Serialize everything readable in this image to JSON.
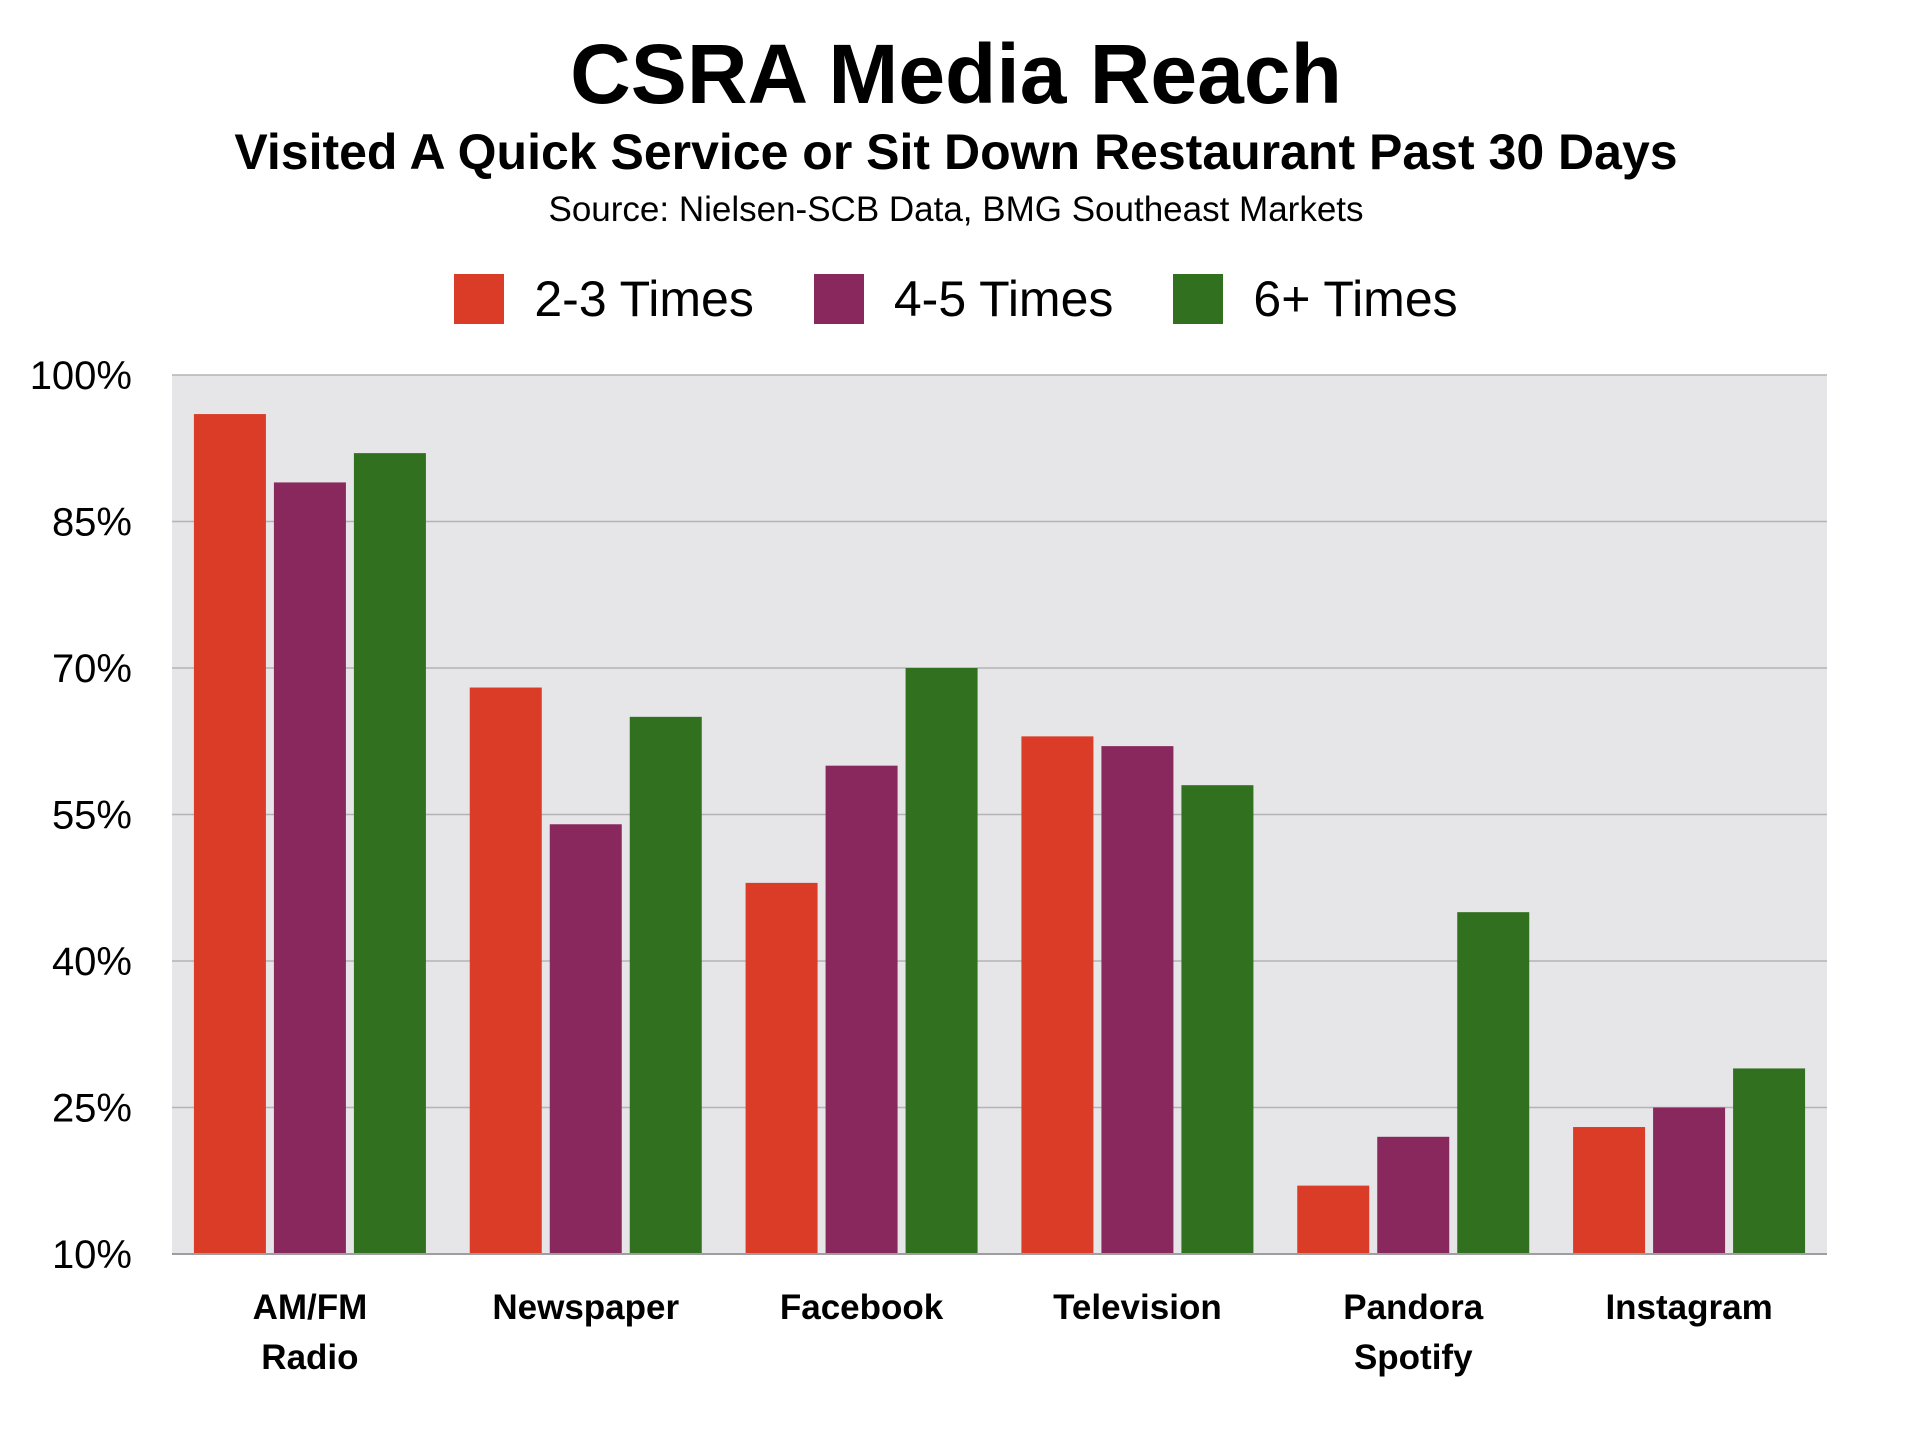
{
  "chart_data": {
    "type": "bar",
    "title": "CSRA Media Reach",
    "subtitle": "Visited A Quick Service or Sit Down Restaurant Past 30 Days",
    "source": "Source: Nielsen-SCB Data, BMG Southeast Markets",
    "categories": [
      [
        "AM/FM",
        "Radio"
      ],
      [
        "Newspaper"
      ],
      [
        "Facebook"
      ],
      [
        "Television"
      ],
      [
        "Pandora",
        "Spotify"
      ],
      [
        "Instagram"
      ]
    ],
    "series": [
      {
        "name": "2-3 Times",
        "color": "#da3c27",
        "values": [
          96,
          68,
          48,
          63,
          17,
          23
        ]
      },
      {
        "name": "4-5 Times",
        "color": "#88285c",
        "values": [
          89,
          54,
          60,
          62,
          22,
          25
        ]
      },
      {
        "name": "6+ Times",
        "color": "#31701f",
        "values": [
          92,
          65,
          70,
          58,
          45,
          29
        ]
      }
    ],
    "ylim": [
      10,
      100
    ],
    "yticks": [
      10,
      25,
      40,
      55,
      70,
      85,
      100
    ],
    "ytick_labels": [
      "10%",
      "25%",
      "40%",
      "55%",
      "70%",
      "85%",
      "100%"
    ],
    "grid": true,
    "legend_position": "top-center",
    "plot_background": "#e6e5e8",
    "xlabel": "",
    "ylabel": ""
  }
}
